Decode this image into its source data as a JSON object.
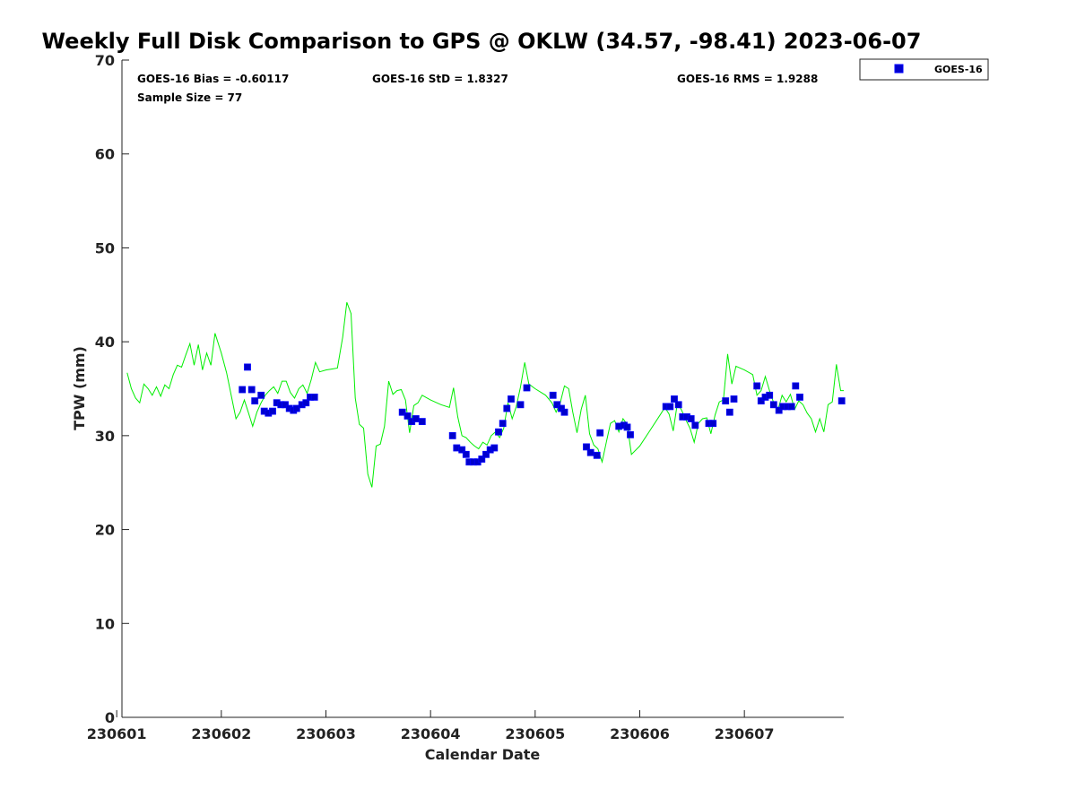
{
  "chart_data": {
    "type": "scatter",
    "title": "Weekly Full Disk Comparison to GPS @ OKLW (34.57, -98.41) 2023-06-07",
    "xlabel": "Calendar Date",
    "ylabel": "TPW (mm)",
    "xlim": [
      230601.05,
      230607.95
    ],
    "ylim": [
      0,
      70
    ],
    "x_tick_labels": [
      "230601",
      "230602",
      "230603",
      "230604",
      "230605",
      "230606",
      "230607"
    ],
    "y_tick_labels": [
      "0",
      "10",
      "20",
      "30",
      "40",
      "50",
      "60",
      "70"
    ],
    "stats": {
      "bias": "GOES-16 Bias = -0.60117",
      "std": "GOES-16 StD = 1.8327",
      "rms": "GOES-16 RMS = 1.9288",
      "sample": "Sample Size = 77"
    },
    "legend": {
      "position": "top-right, outside plot",
      "entries": [
        "GOES-16"
      ]
    },
    "grid": false,
    "colors": {
      "gps_line": "#00ee00",
      "goes_marker": "#0000cc",
      "goes_marker_edge": "#0000ff"
    },
    "series": [
      {
        "name": "GOES-16",
        "kind": "markers",
        "points": [
          [
            230602.2,
            34.9
          ],
          [
            230602.25,
            37.3
          ],
          [
            230602.29,
            34.9
          ],
          [
            230602.32,
            33.7
          ],
          [
            230602.38,
            34.3
          ],
          [
            230602.41,
            32.6
          ],
          [
            230602.45,
            32.4
          ],
          [
            230602.49,
            32.6
          ],
          [
            230602.53,
            33.5
          ],
          [
            230602.57,
            33.3
          ],
          [
            230602.61,
            33.3
          ],
          [
            230602.65,
            32.9
          ],
          [
            230602.69,
            32.7
          ],
          [
            230602.72,
            32.9
          ],
          [
            230602.77,
            33.3
          ],
          [
            230602.81,
            33.5
          ],
          [
            230602.85,
            34.1
          ],
          [
            230602.89,
            34.1
          ],
          [
            230603.73,
            32.5
          ],
          [
            230603.78,
            32.1
          ],
          [
            230603.82,
            31.5
          ],
          [
            230603.86,
            31.8
          ],
          [
            230603.92,
            31.5
          ],
          [
            230604.21,
            30.0
          ],
          [
            230604.25,
            28.7
          ],
          [
            230604.3,
            28.5
          ],
          [
            230604.34,
            28.0
          ],
          [
            230604.37,
            27.2
          ],
          [
            230604.41,
            27.2
          ],
          [
            230604.45,
            27.2
          ],
          [
            230604.49,
            27.5
          ],
          [
            230604.53,
            28.0
          ],
          [
            230604.57,
            28.5
          ],
          [
            230604.61,
            28.7
          ],
          [
            230604.65,
            30.4
          ],
          [
            230604.69,
            31.3
          ],
          [
            230604.73,
            32.9
          ],
          [
            230604.77,
            33.9
          ],
          [
            230604.86,
            33.3
          ],
          [
            230604.92,
            35.1
          ],
          [
            230605.17,
            34.3
          ],
          [
            230605.21,
            33.3
          ],
          [
            230605.25,
            32.9
          ],
          [
            230605.28,
            32.5
          ],
          [
            230605.49,
            28.8
          ],
          [
            230605.53,
            28.2
          ],
          [
            230605.59,
            27.9
          ],
          [
            230605.62,
            30.3
          ],
          [
            230605.8,
            31.0
          ],
          [
            230605.85,
            31.1
          ],
          [
            230605.88,
            30.9
          ],
          [
            230605.91,
            30.1
          ],
          [
            230606.25,
            33.1
          ],
          [
            230606.29,
            33.1
          ],
          [
            230606.33,
            33.9
          ],
          [
            230606.37,
            33.3
          ],
          [
            230606.41,
            32.0
          ],
          [
            230606.45,
            32.0
          ],
          [
            230606.49,
            31.8
          ],
          [
            230606.53,
            31.1
          ],
          [
            230606.66,
            31.3
          ],
          [
            230606.7,
            31.3
          ],
          [
            230606.82,
            33.7
          ],
          [
            230606.86,
            32.5
          ],
          [
            230606.9,
            33.9
          ],
          [
            230607.12,
            35.3
          ],
          [
            230607.16,
            33.7
          ],
          [
            230607.2,
            34.1
          ],
          [
            230607.24,
            34.3
          ],
          [
            230607.28,
            33.3
          ],
          [
            230607.33,
            32.7
          ],
          [
            230607.37,
            33.1
          ],
          [
            230607.41,
            33.1
          ],
          [
            230607.45,
            33.1
          ],
          [
            230607.49,
            35.3
          ],
          [
            230607.53,
            34.1
          ],
          [
            230607.93,
            33.7
          ]
        ]
      },
      {
        "kind": "line",
        "points": [
          [
            230601.1,
            36.7
          ],
          [
            230601.14,
            35.0
          ],
          [
            230601.18,
            34.0
          ],
          [
            230601.22,
            33.5
          ],
          [
            230601.26,
            35.5
          ],
          [
            230601.3,
            35.0
          ],
          [
            230601.34,
            34.3
          ],
          [
            230601.38,
            35.2
          ],
          [
            230601.42,
            34.2
          ],
          [
            230601.46,
            35.4
          ],
          [
            230601.5,
            35.0
          ],
          [
            230601.54,
            36.5
          ],
          [
            230601.58,
            37.5
          ],
          [
            230601.62,
            37.3
          ],
          [
            230601.66,
            38.6
          ],
          [
            230601.7,
            39.8
          ],
          [
            230601.74,
            37.5
          ],
          [
            230601.78,
            39.7
          ],
          [
            230601.82,
            37.0
          ],
          [
            230601.86,
            38.8
          ],
          [
            230601.9,
            37.5
          ],
          [
            230601.94,
            40.9
          ],
          [
            230602.0,
            38.8
          ],
          [
            230602.05,
            36.7
          ],
          [
            230602.1,
            34.0
          ],
          [
            230602.14,
            31.8
          ],
          [
            230602.18,
            32.5
          ],
          [
            230602.22,
            33.8
          ],
          [
            230602.26,
            32.4
          ],
          [
            230602.3,
            31.0
          ],
          [
            230602.34,
            32.5
          ],
          [
            230602.38,
            33.5
          ],
          [
            230602.42,
            34.3
          ],
          [
            230602.46,
            34.8
          ],
          [
            230602.5,
            35.2
          ],
          [
            230602.54,
            34.5
          ],
          [
            230602.58,
            35.8
          ],
          [
            230602.62,
            35.8
          ],
          [
            230602.66,
            34.6
          ],
          [
            230602.7,
            34.0
          ],
          [
            230602.74,
            35.0
          ],
          [
            230602.78,
            35.4
          ],
          [
            230602.82,
            34.5
          ],
          [
            230602.86,
            36.0
          ],
          [
            230602.9,
            37.8
          ],
          [
            230602.94,
            36.8
          ],
          [
            230603.0,
            37.0
          ],
          [
            230603.06,
            37.1
          ],
          [
            230603.11,
            37.2
          ],
          [
            230603.16,
            40.5
          ],
          [
            230603.2,
            44.2
          ],
          [
            230603.24,
            43.0
          ],
          [
            230603.28,
            34.0
          ],
          [
            230603.32,
            31.2
          ],
          [
            230603.36,
            30.8
          ],
          [
            230603.4,
            25.9
          ],
          [
            230603.44,
            24.5
          ],
          [
            230603.48,
            28.9
          ],
          [
            230603.52,
            29.1
          ],
          [
            230603.56,
            31.0
          ],
          [
            230603.6,
            35.8
          ],
          [
            230603.64,
            34.4
          ],
          [
            230603.68,
            34.8
          ],
          [
            230603.72,
            34.9
          ],
          [
            230603.76,
            33.8
          ],
          [
            230603.8,
            30.3
          ],
          [
            230603.84,
            33.2
          ],
          [
            230603.88,
            33.5
          ],
          [
            230603.92,
            34.3
          ],
          [
            230604.0,
            33.8
          ],
          [
            230604.1,
            33.3
          ],
          [
            230604.18,
            33.0
          ],
          [
            230604.22,
            35.1
          ],
          [
            230604.26,
            32.0
          ],
          [
            230604.3,
            30.0
          ],
          [
            230604.34,
            29.8
          ],
          [
            230604.38,
            29.3
          ],
          [
            230604.42,
            28.9
          ],
          [
            230604.46,
            28.6
          ],
          [
            230604.5,
            29.3
          ],
          [
            230604.54,
            29.0
          ],
          [
            230604.58,
            30.0
          ],
          [
            230604.62,
            30.4
          ],
          [
            230604.66,
            29.8
          ],
          [
            230604.7,
            30.8
          ],
          [
            230604.74,
            33.5
          ],
          [
            230604.78,
            31.8
          ],
          [
            230604.82,
            33.1
          ],
          [
            230604.86,
            35.2
          ],
          [
            230604.9,
            37.8
          ],
          [
            230604.94,
            35.5
          ],
          [
            230605.0,
            35.0
          ],
          [
            230605.1,
            34.3
          ],
          [
            230605.16,
            33.5
          ],
          [
            230605.2,
            32.5
          ],
          [
            230605.24,
            33.5
          ],
          [
            230605.28,
            35.3
          ],
          [
            230605.32,
            35.0
          ],
          [
            230605.36,
            32.5
          ],
          [
            230605.4,
            30.3
          ],
          [
            230605.44,
            32.8
          ],
          [
            230605.48,
            34.3
          ],
          [
            230605.52,
            30.2
          ],
          [
            230605.56,
            29.0
          ],
          [
            230605.6,
            28.6
          ],
          [
            230605.64,
            27.2
          ],
          [
            230605.68,
            29.3
          ],
          [
            230605.72,
            31.3
          ],
          [
            230605.76,
            31.6
          ],
          [
            230605.8,
            30.4
          ],
          [
            230605.84,
            31.8
          ],
          [
            230605.88,
            31.2
          ],
          [
            230605.92,
            28.0
          ],
          [
            230606.0,
            28.9
          ],
          [
            230606.1,
            30.6
          ],
          [
            230606.2,
            32.3
          ],
          [
            230606.24,
            33.0
          ],
          [
            230606.28,
            32.3
          ],
          [
            230606.32,
            30.5
          ],
          [
            230606.36,
            33.5
          ],
          [
            230606.4,
            32.7
          ],
          [
            230606.44,
            31.7
          ],
          [
            230606.48,
            30.8
          ],
          [
            230606.52,
            29.3
          ],
          [
            230606.56,
            31.3
          ],
          [
            230606.6,
            31.8
          ],
          [
            230606.64,
            31.9
          ],
          [
            230606.68,
            30.2
          ],
          [
            230606.72,
            32.2
          ],
          [
            230606.76,
            33.6
          ],
          [
            230606.8,
            33.8
          ],
          [
            230606.84,
            38.7
          ],
          [
            230606.88,
            35.5
          ],
          [
            230606.92,
            37.4
          ],
          [
            230607.0,
            37.0
          ],
          [
            230607.08,
            36.5
          ],
          [
            230607.12,
            34.3
          ],
          [
            230607.16,
            34.8
          ],
          [
            230607.2,
            36.3
          ],
          [
            230607.24,
            34.8
          ],
          [
            230607.28,
            33.5
          ],
          [
            230607.32,
            32.7
          ],
          [
            230607.36,
            34.3
          ],
          [
            230607.4,
            33.6
          ],
          [
            230607.44,
            34.4
          ],
          [
            230607.48,
            32.8
          ],
          [
            230607.52,
            33.7
          ],
          [
            230607.56,
            33.3
          ],
          [
            230607.6,
            32.4
          ],
          [
            230607.64,
            31.8
          ],
          [
            230607.68,
            30.4
          ],
          [
            230607.72,
            31.8
          ],
          [
            230607.76,
            30.4
          ],
          [
            230607.8,
            33.3
          ],
          [
            230607.84,
            33.6
          ],
          [
            230607.88,
            37.6
          ],
          [
            230607.92,
            34.8
          ],
          [
            230607.95,
            34.8
          ]
        ]
      }
    ]
  }
}
